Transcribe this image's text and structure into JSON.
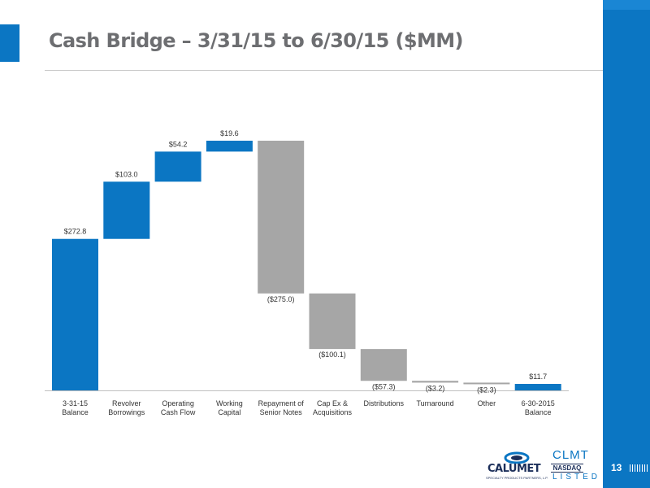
{
  "header": {
    "title": "Cash Bridge – 3/31/15 to 6/30/15 ($MM)"
  },
  "footer": {
    "page_number": "13",
    "logo": {
      "company": "CALUMET",
      "company_sub": "SPECIALTY PRODUCTS PARTNERS, L.P.",
      "ticker": "CLMT",
      "exchange": "NASDAQ",
      "listed": "LISTED"
    }
  },
  "colors": {
    "brand_blue": "#0b76c3",
    "negative_gray": "#a6a6a6",
    "title_gray": "#6d6e71"
  },
  "chart_data": {
    "type": "bar",
    "subtype": "waterfall",
    "title": "",
    "xlabel": "",
    "ylabel": "",
    "grid": false,
    "categories": [
      [
        "3-31-15",
        "Balance"
      ],
      [
        "Revolver",
        "Borrowings"
      ],
      [
        "Operating",
        "Cash Flow"
      ],
      [
        "Working",
        "Capital"
      ],
      [
        "Repayment of",
        "Senior Notes"
      ],
      [
        "Cap Ex &",
        "Acquisitions"
      ],
      [
        "Distributions"
      ],
      [
        "Turnaround"
      ],
      [
        "Other"
      ],
      [
        "6-30-2015",
        "Balance"
      ]
    ],
    "values": [
      272.8,
      103.0,
      54.2,
      19.6,
      -275.0,
      -100.1,
      -57.3,
      -3.2,
      -2.3,
      11.7
    ],
    "kinds": [
      "total",
      "delta",
      "delta",
      "delta",
      "delta",
      "delta",
      "delta",
      "delta",
      "delta",
      "total"
    ],
    "labels": [
      "$272.8",
      "$103.0",
      "$54.2",
      "$19.6",
      "($275.0)",
      "($100.1)",
      "($57.3)",
      "($3.2)",
      "($2.3)",
      "$11.7"
    ]
  }
}
